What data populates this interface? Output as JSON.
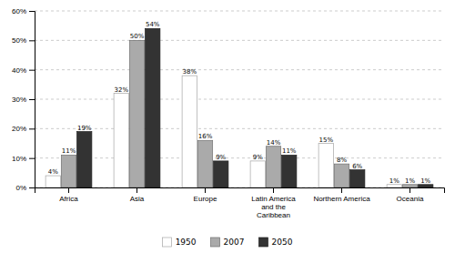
{
  "chart_data": {
    "type": "bar",
    "categories": [
      "Africa",
      "Asia",
      "Europe",
      "Latin America\nand the\nCaribbean",
      "Northern America",
      "Oceania"
    ],
    "series": [
      {
        "name": "1950",
        "color": "#ffffff",
        "values": [
          4,
          32,
          38,
          9,
          15,
          1
        ],
        "value_labels": [
          "4%",
          "32%",
          "38%",
          "9%",
          "15%",
          "1%"
        ]
      },
      {
        "name": "2007",
        "color": "#aaaaaa",
        "values": [
          11,
          50,
          16,
          14,
          8,
          1
        ],
        "value_labels": [
          "11%",
          "50%",
          "16%",
          "14%",
          "8%",
          "1%"
        ]
      },
      {
        "name": "2050",
        "color": "#333333",
        "values": [
          19,
          54,
          9,
          11,
          6,
          1
        ],
        "value_labels": [
          "19%",
          "54%",
          "9%",
          "11%",
          "6%",
          "1%"
        ]
      }
    ],
    "ylim": [
      0,
      60
    ],
    "yticks": [
      {
        "value": 0,
        "label": "0%"
      },
      {
        "value": 10,
        "label": "10%"
      },
      {
        "value": 20,
        "label": "20%"
      },
      {
        "value": 30,
        "label": "30%"
      },
      {
        "value": 40,
        "label": "40%"
      },
      {
        "value": 50,
        "label": "50%"
      },
      {
        "value": 60,
        "label": "60%"
      }
    ],
    "grid": true,
    "data_labels": true,
    "legend": "bottom"
  }
}
